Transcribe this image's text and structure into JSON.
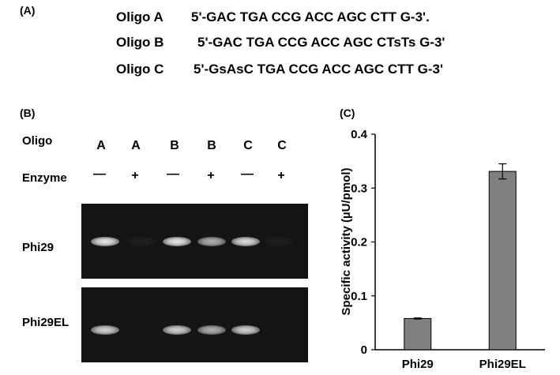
{
  "panelA": {
    "label": "(A)",
    "oligos": [
      {
        "name": "Oligo A",
        "seq": "5'-GAC TGA CCG ACC AGC CTT G-3'."
      },
      {
        "name": "Oligo B",
        "seq": "5'-GAC TGA CCG ACC AGC CTsTs G-3'"
      },
      {
        "name": "Oligo C",
        "seq": "5'-GsAsC TGA CCG ACC AGC CTT G-3'"
      }
    ]
  },
  "panelB": {
    "label": "(B)",
    "oligo_row_label": "Oligo",
    "enzyme_row_label": "Enzyme",
    "lanes": [
      "A",
      "A",
      "B",
      "B",
      "C",
      "C"
    ],
    "enzyme": [
      "—",
      "+",
      "—",
      "+",
      "—",
      "+"
    ],
    "gels": [
      {
        "name": "Phi29",
        "bands": [
          0.95,
          0.05,
          0.95,
          0.7,
          0.9,
          0.05
        ]
      },
      {
        "name": "Phi29EL",
        "bands": [
          0.85,
          0.0,
          0.85,
          0.7,
          0.85,
          0.0
        ]
      }
    ]
  },
  "panelC": {
    "label": "(C)"
  },
  "chart_data": {
    "type": "bar",
    "categories": [
      "Phi29",
      "Phi29EL"
    ],
    "values": [
      0.058,
      0.331
    ],
    "errors": [
      0.001,
      0.014
    ],
    "ylabel": "Specific activity (µU/pmol)",
    "xlabel": "",
    "ylim": [
      0,
      0.4
    ],
    "yticks": [
      "0",
      "0.1",
      "0.2",
      "0.3",
      "0.4"
    ],
    "bar_color": "#808080"
  }
}
